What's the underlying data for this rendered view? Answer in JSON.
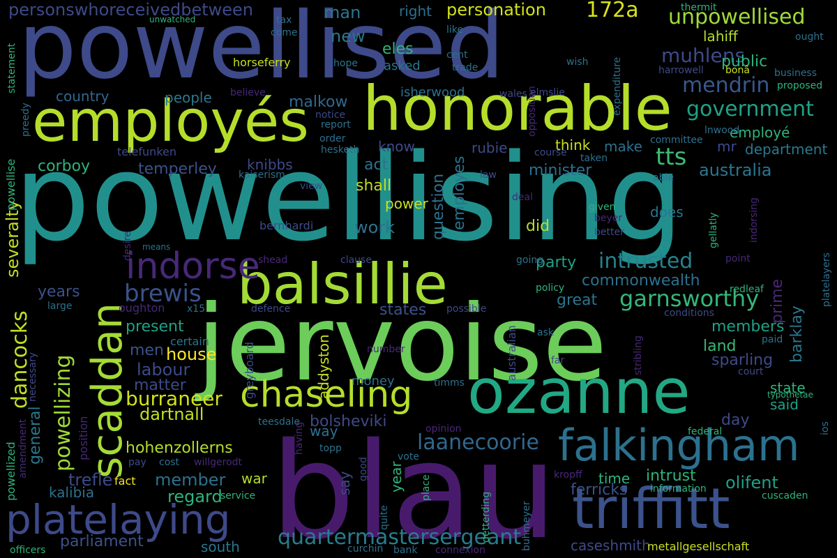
{
  "words": [
    {
      "text": "powellising",
      "color": "#21908d"
    },
    {
      "text": "powellised",
      "color": "#3e4a89"
    },
    {
      "text": "jervoise",
      "color": "#6ccd5a"
    },
    {
      "text": "blau",
      "color": "#481a6c"
    },
    {
      "text": "honorable",
      "color": "#b5de2b"
    },
    {
      "text": "employés",
      "color": "#b5de2b"
    },
    {
      "text": "ozanne",
      "color": "#22a884"
    },
    {
      "text": "balsillie",
      "color": "#a5db36"
    },
    {
      "text": "triffitt",
      "color": "#3b528b"
    },
    {
      "text": "falkingham",
      "color": "#2c718e"
    },
    {
      "text": "platelaying",
      "color": "#3e4a89"
    },
    {
      "text": "chaseling",
      "color": "#b5de2b"
    },
    {
      "text": "scaddan",
      "color": "#a5db36"
    },
    {
      "text": "indorse",
      "color": "#482878"
    },
    {
      "text": "quartermastersergeant",
      "color": "#287d8e"
    },
    {
      "text": "laanecoorie",
      "color": "#31688e"
    },
    {
      "text": "garnsworthy",
      "color": "#35b779"
    },
    {
      "text": "intrusted",
      "color": "#26828e"
    },
    {
      "text": "burraneer",
      "color": "#d2e21b"
    },
    {
      "text": "powellizing",
      "color": "#a0da39"
    },
    {
      "text": "brewis",
      "color": "#3b528b"
    },
    {
      "text": "hohenzollerns",
      "color": "#b5de2b"
    },
    {
      "text": "unpowellised",
      "color": "#a0da39"
    },
    {
      "text": "government",
      "color": "#1fa187"
    },
    {
      "text": "muhlens",
      "color": "#3e4a89"
    },
    {
      "text": "personation",
      "color": "#d2e21b"
    },
    {
      "text": "172a",
      "color": "#d8e219"
    },
    {
      "text": "personswhoreceivedbetween",
      "color": "#3e4a89"
    },
    {
      "text": "mendrin",
      "color": "#38588c"
    },
    {
      "text": "tts",
      "color": "#3dbc74"
    },
    {
      "text": "australia",
      "color": "#2a768e"
    },
    {
      "text": "commonwealth",
      "color": "#2c718e"
    },
    {
      "text": "bolsheviki",
      "color": "#3e4a89"
    },
    {
      "text": "dancocks",
      "color": "#c2df23"
    },
    {
      "text": "severalty",
      "color": "#c2df23"
    },
    {
      "text": "temperley",
      "color": "#3b528b"
    },
    {
      "text": "dartnall",
      "color": "#c2df23"
    },
    {
      "text": "sparling",
      "color": "#3e4a89"
    },
    {
      "text": "barklay",
      "color": "#2a768e"
    },
    {
      "text": "prime",
      "color": "#482878"
    },
    {
      "text": "members",
      "color": "#1fa187"
    },
    {
      "text": "land",
      "color": "#38b977"
    },
    {
      "text": "olifent",
      "color": "#1fa187"
    },
    {
      "text": "ferricks",
      "color": "#3b528b"
    },
    {
      "text": "intrust",
      "color": "#2fb47c"
    },
    {
      "text": "time",
      "color": "#2fb47c"
    },
    {
      "text": "member",
      "color": "#2c718e"
    },
    {
      "text": "regard",
      "color": "#2fb47c"
    },
    {
      "text": "war",
      "color": "#b5de2b"
    },
    {
      "text": "trefle",
      "color": "#3e4a89"
    },
    {
      "text": "kalibia",
      "color": "#2c718e"
    },
    {
      "text": "parliament",
      "color": "#3b528b"
    },
    {
      "text": "present",
      "color": "#1fa187"
    },
    {
      "text": "men",
      "color": "#3b528b"
    },
    {
      "text": "house",
      "color": "#fde725"
    },
    {
      "text": "labour",
      "color": "#3e4a89"
    },
    {
      "text": "matter",
      "color": "#3e4a89"
    },
    {
      "text": "great",
      "color": "#2a768e"
    },
    {
      "text": "party",
      "color": "#1fa187"
    },
    {
      "text": "did",
      "color": "#bddf26"
    },
    {
      "text": "work",
      "color": "#2c728e"
    },
    {
      "text": "shall",
      "color": "#c2df23"
    },
    {
      "text": "power",
      "color": "#c8e020"
    },
    {
      "text": "minister",
      "color": "#2c718e"
    },
    {
      "text": "question",
      "color": "#2c718e"
    },
    {
      "text": "employes",
      "color": "#2c718e"
    },
    {
      "text": "think",
      "color": "#c8e020"
    },
    {
      "text": "make",
      "color": "#2c718e"
    },
    {
      "text": "know",
      "color": "#3e4a89"
    },
    {
      "text": "act",
      "color": "#2c728e"
    },
    {
      "text": "rubie",
      "color": "#3e4a89"
    },
    {
      "text": "knibbs",
      "color": "#3e4a89"
    },
    {
      "text": "malkow",
      "color": "#31688e"
    },
    {
      "text": "people",
      "color": "#2a788e"
    },
    {
      "text": "country",
      "color": "#31688e"
    },
    {
      "text": "corboy",
      "color": "#2fb47c"
    },
    {
      "text": "years",
      "color": "#3b528b"
    },
    {
      "text": "states",
      "color": "#3b528b"
    },
    {
      "text": "general",
      "color": "#2a788e"
    },
    {
      "text": "say",
      "color": "#3e4a89"
    },
    {
      "text": "way",
      "color": "#2c728e"
    },
    {
      "text": "day",
      "color": "#3e4a89"
    },
    {
      "text": "said",
      "color": "#1fa187"
    },
    {
      "text": "state",
      "color": "#2fb47c"
    },
    {
      "text": "department",
      "color": "#2a788e"
    },
    {
      "text": "mr",
      "color": "#3e4a89"
    },
    {
      "text": "employé",
      "color": "#2fb47c"
    },
    {
      "text": "does",
      "color": "#2a768e"
    },
    {
      "text": "lahiff",
      "color": "#b5de2b"
    },
    {
      "text": "public",
      "color": "#2fb47c"
    },
    {
      "text": "new",
      "color": "#2a768e"
    },
    {
      "text": "man",
      "color": "#2a768e"
    },
    {
      "text": "eles",
      "color": "#2fb47c"
    },
    {
      "text": "right",
      "color": "#2c718e"
    },
    {
      "text": "asked",
      "color": "#2a768e"
    },
    {
      "text": "isherwood",
      "color": "#2c718e"
    },
    {
      "text": "addyston",
      "color": "#c8e020"
    },
    {
      "text": "money",
      "color": "#2c718e"
    },
    {
      "text": "year",
      "color": "#2fb47c"
    },
    {
      "text": "south",
      "color": "#2a768e"
    },
    {
      "text": "caseshmith",
      "color": "#3e4a89"
    },
    {
      "text": "metallgesellschaft",
      "color": "#c8e020"
    },
    {
      "text": "australian",
      "color": "#3e4a89"
    },
    {
      "text": "telefunken",
      "color": "#3e4a89"
    },
    {
      "text": "powellise",
      "color": "#2fb47c"
    },
    {
      "text": "powellized",
      "color": "#2fb47c"
    },
    {
      "text": "bernhardi",
      "color": "#3e4a89"
    },
    {
      "text": "oughton",
      "color": "#482878"
    },
    {
      "text": "position",
      "color": "#482878"
    },
    {
      "text": "fact",
      "color": "#fde725"
    },
    {
      "text": "greyboard",
      "color": "#3e4a89"
    },
    {
      "text": "teesdale",
      "color": "#2c718e"
    },
    {
      "text": "certain",
      "color": "#2a768e"
    },
    {
      "text": "necessary",
      "color": "#3e4a89"
    },
    {
      "text": "horseferry",
      "color": "#c8e020"
    },
    {
      "text": "hope",
      "color": "#2a768e"
    },
    {
      "text": "cent",
      "color": "#2c718e"
    },
    {
      "text": "trade",
      "color": "#2c718e"
    },
    {
      "text": "come",
      "color": "#2c718e"
    },
    {
      "text": "like",
      "color": "#2a768e"
    },
    {
      "text": "tax",
      "color": "#2c718e"
    },
    {
      "text": "wish",
      "color": "#2c718e"
    },
    {
      "text": "opposition",
      "color": "#482878"
    },
    {
      "text": "expenditure",
      "color": "#2c718e"
    },
    {
      "text": "thermit",
      "color": "#2fb47c"
    },
    {
      "text": "ought",
      "color": "#2c718e"
    },
    {
      "text": "bonâ",
      "color": "#c8e020"
    },
    {
      "text": "harrowell",
      "color": "#3e4a89"
    },
    {
      "text": "business",
      "color": "#2c718e"
    },
    {
      "text": "proposed",
      "color": "#2fb47c"
    },
    {
      "text": "elmslie",
      "color": "#3e4a89"
    },
    {
      "text": "wales",
      "color": "#3e4a89"
    },
    {
      "text": "report",
      "color": "#2c718e"
    },
    {
      "text": "notice",
      "color": "#3e4a89"
    },
    {
      "text": "order",
      "color": "#2c718e"
    },
    {
      "text": "hesketh",
      "color": "#2c718e"
    },
    {
      "text": "course",
      "color": "#3e4a89"
    },
    {
      "text": "committee",
      "color": "#2c718e"
    },
    {
      "text": "taken",
      "color": "#2c718e"
    },
    {
      "text": "lnwood",
      "color": "#2c718e"
    },
    {
      "text": "law",
      "color": "#3e4a89"
    },
    {
      "text": "able",
      "color": "#2c718e"
    },
    {
      "text": "deal",
      "color": "#482878"
    },
    {
      "text": "given",
      "color": "#2fb47c"
    },
    {
      "text": "beyer",
      "color": "#482878"
    },
    {
      "text": "better",
      "color": "#3e4a89"
    },
    {
      "text": "view",
      "color": "#3e4a89"
    },
    {
      "text": "kaiserism",
      "color": "#2c718e"
    },
    {
      "text": "means",
      "color": "#2c718e"
    },
    {
      "text": "shead",
      "color": "#482878"
    },
    {
      "text": "clause",
      "color": "#3e4a89"
    },
    {
      "text": "going",
      "color": "#2c718e"
    },
    {
      "text": "policy",
      "color": "#2fb47c"
    },
    {
      "text": "redleaf",
      "color": "#2fb47c"
    },
    {
      "text": "point",
      "color": "#482878"
    },
    {
      "text": "defence",
      "color": "#3e4a89"
    },
    {
      "text": "possible",
      "color": "#3e4a89"
    },
    {
      "text": "conditions",
      "color": "#3e4a89"
    },
    {
      "text": "ask",
      "color": "#2c718e"
    },
    {
      "text": "paid",
      "color": "#2c718e"
    },
    {
      "text": "court",
      "color": "#3e4a89"
    },
    {
      "text": "typothetae",
      "color": "#2fb47c"
    },
    {
      "text": "number",
      "color": "#482878"
    },
    {
      "text": "far",
      "color": "#3e4a89"
    },
    {
      "text": "timms",
      "color": "#2c718e"
    },
    {
      "text": "opinion",
      "color": "#482878"
    },
    {
      "text": "federal",
      "color": "#2fb47c"
    },
    {
      "text": "topp",
      "color": "#2c718e"
    },
    {
      "text": "vote",
      "color": "#2c718e"
    },
    {
      "text": "cost",
      "color": "#2c718e"
    },
    {
      "text": "pay",
      "color": "#3e4a89"
    },
    {
      "text": "willgerodt",
      "color": "#482878"
    },
    {
      "text": "kropff",
      "color": "#482878"
    },
    {
      "text": "information",
      "color": "#2fb47c"
    },
    {
      "text": "cuscaden",
      "color": "#2fb47c"
    },
    {
      "text": "service",
      "color": "#2fb47c"
    },
    {
      "text": "large",
      "color": "#2c718e"
    },
    {
      "text": "x15",
      "color": "#2c718e"
    },
    {
      "text": "unwatched",
      "color": "#2fb47c"
    },
    {
      "text": "believe",
      "color": "#482878"
    },
    {
      "text": "officers",
      "color": "#2fb47c"
    },
    {
      "text": "curchin",
      "color": "#2c718e"
    },
    {
      "text": "bank",
      "color": "#2c718e"
    },
    {
      "text": "connexion",
      "color": "#482878"
    },
    {
      "text": "statement",
      "color": "#2fb47c"
    },
    {
      "text": "preedy",
      "color": "#2c718e"
    },
    {
      "text": "amendment",
      "color": "#482878"
    },
    {
      "text": "desire",
      "color": "#482878"
    },
    {
      "text": "having",
      "color": "#482878"
    },
    {
      "text": "good",
      "color": "#3e4a89"
    },
    {
      "text": "place",
      "color": "#2fb47c"
    },
    {
      "text": "quite",
      "color": "#2c718e"
    },
    {
      "text": "detterding",
      "color": "#2fb47c"
    },
    {
      "text": "buhmeyer",
      "color": "#2c718e"
    },
    {
      "text": "stribling",
      "color": "#482878"
    },
    {
      "text": "gellatly",
      "color": "#2fb47c"
    },
    {
      "text": "indorsing",
      "color": "#482878"
    },
    {
      "text": "platelayers",
      "color": "#2c718e"
    },
    {
      "text": "ios",
      "color": "#2c718e"
    }
  ]
}
